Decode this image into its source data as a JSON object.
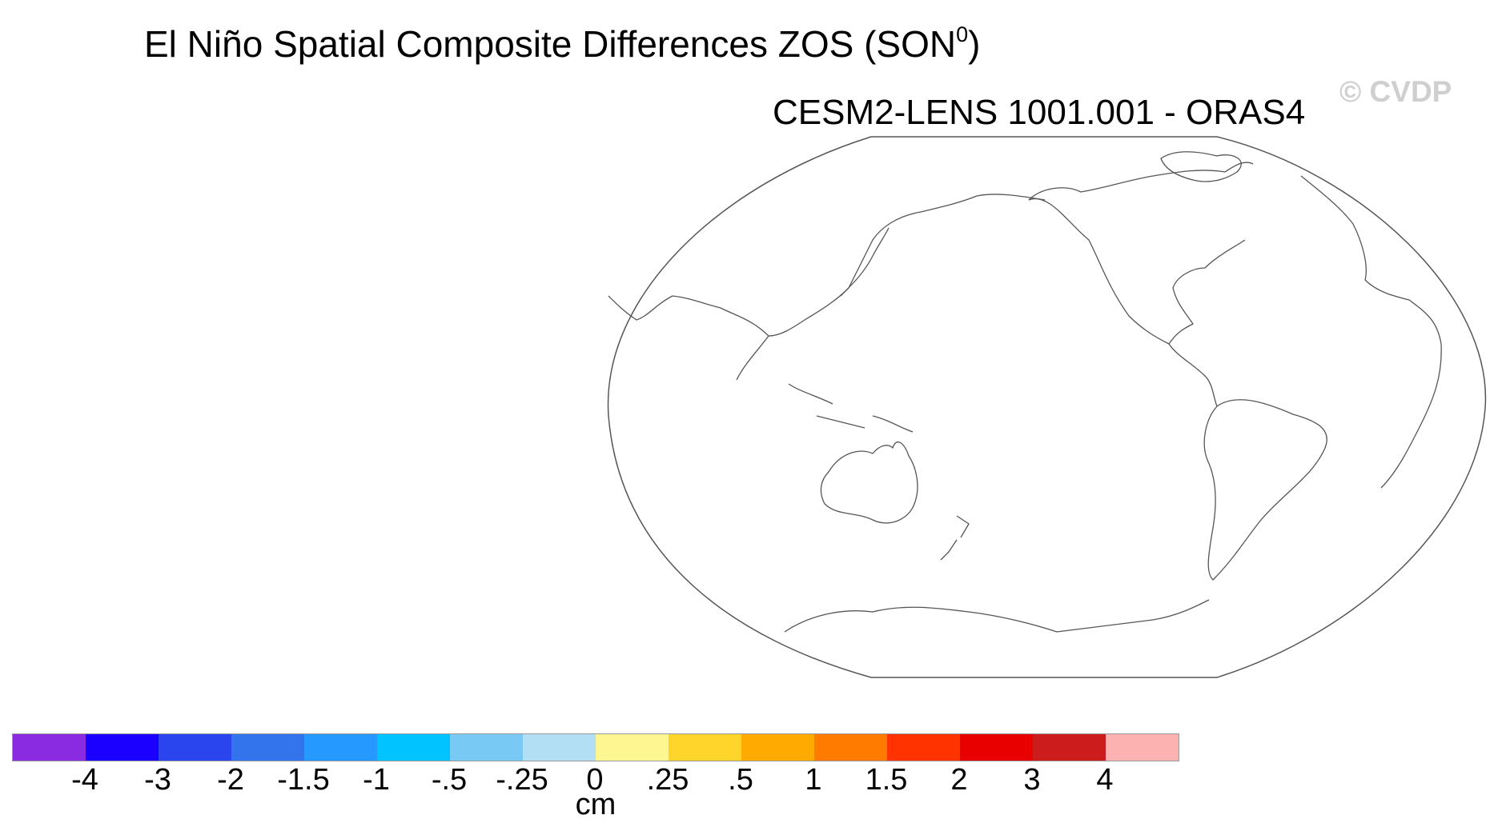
{
  "title": "El Niño Spatial Composite Differences ZOS (SON",
  "title_superscript": "0",
  "title_close": ")",
  "subtitle": "CESM2-LENS 1001.001 - ORAS4",
  "watermark": "© CVDP",
  "colorbar": {
    "units": "cm",
    "colors": [
      "#8a2be2",
      "#1b00ff",
      "#2b45ee",
      "#3373ec",
      "#2599ff",
      "#00c3ff",
      "#78c9f3",
      "#b3dff4",
      "#fef690",
      "#ffd52b",
      "#ffaa00",
      "#ff7b00",
      "#ff3300",
      "#e80000",
      "#cc1c1c",
      "#fdb2b2"
    ],
    "labels": [
      "-4",
      "-3",
      "-2",
      "-1.5",
      "-1",
      "-.5",
      "-.25",
      "0",
      ".25",
      ".5",
      "1",
      "1.5",
      "2",
      "3",
      "4"
    ]
  },
  "map_colors": {
    "coastline": "#555555",
    "background": "#ffffff"
  }
}
